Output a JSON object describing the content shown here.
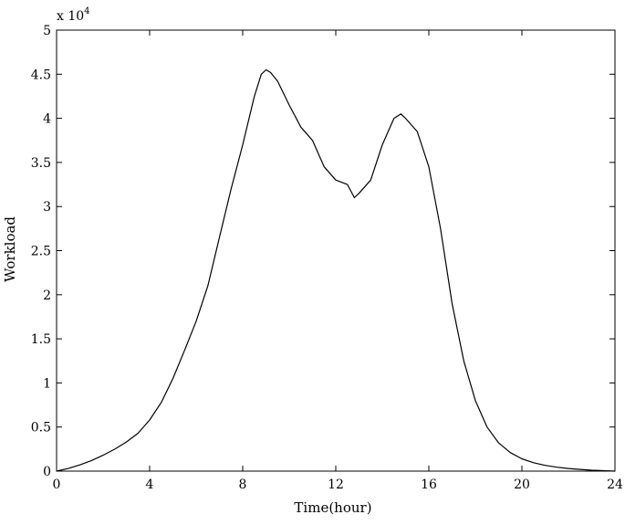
{
  "chart_data": {
    "type": "line",
    "title": "",
    "xlabel": "Time(hour)",
    "ylabel": "Workload",
    "y_multiplier": {
      "base": "x 10",
      "exponent": "4"
    },
    "xlim": [
      0,
      24
    ],
    "ylim": [
      0,
      50000
    ],
    "x_ticks": [
      0,
      4,
      8,
      12,
      16,
      20,
      24
    ],
    "x_tick_labels": [
      "0",
      "4",
      "8",
      "12",
      "16",
      "20",
      "24"
    ],
    "y_ticks": [
      0,
      5000,
      10000,
      15000,
      20000,
      25000,
      30000,
      35000,
      40000,
      45000,
      50000
    ],
    "y_tick_labels": [
      "0",
      "0.5",
      "1",
      "1.5",
      "2",
      "2.5",
      "3",
      "3.5",
      "4",
      "4.5",
      "5"
    ],
    "grid": false,
    "series": [
      {
        "color": "#000000",
        "x": [
          0,
          0.5,
          1,
          1.5,
          2,
          2.5,
          3,
          3.5,
          4,
          4.5,
          5,
          5.5,
          6,
          6.5,
          7,
          7.5,
          8,
          8.5,
          8.8,
          9,
          9.2,
          9.5,
          10,
          10.5,
          11,
          11.5,
          12,
          12.5,
          12.8,
          13,
          13.5,
          14,
          14.5,
          14.8,
          15,
          15.5,
          16,
          16.5,
          17,
          17.5,
          18,
          18.5,
          19,
          19.5,
          20,
          20.5,
          21,
          21.5,
          22,
          22.5,
          23,
          23.5,
          24
        ],
        "y": [
          0,
          300,
          700,
          1200,
          1800,
          2500,
          3300,
          4300,
          5800,
          7800,
          10500,
          13700,
          17000,
          21000,
          26500,
          32000,
          37000,
          42500,
          45000,
          45500,
          45200,
          44200,
          41500,
          39000,
          37500,
          34500,
          33000,
          32500,
          31000,
          31500,
          33000,
          37000,
          40000,
          40500,
          40000,
          38500,
          34500,
          27500,
          19000,
          12500,
          8000,
          5000,
          3200,
          2100,
          1400,
          950,
          650,
          450,
          300,
          200,
          100,
          50,
          0
        ]
      }
    ]
  }
}
